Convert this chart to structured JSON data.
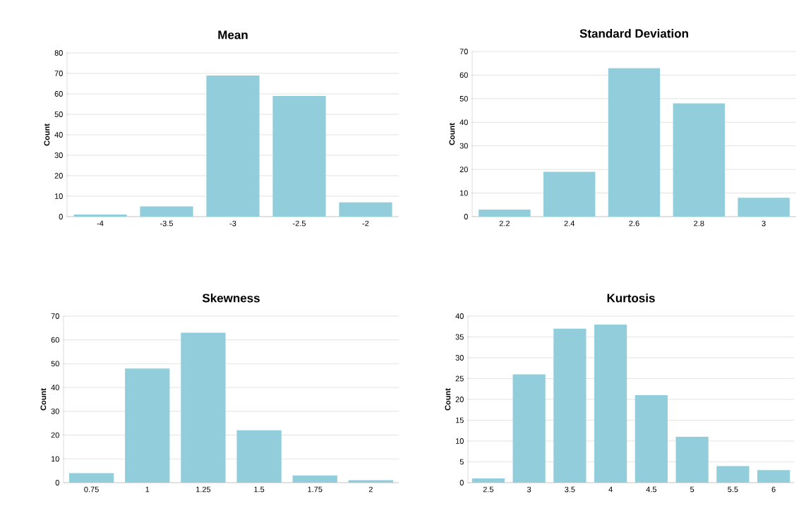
{
  "chart_data": [
    {
      "type": "bar",
      "title": "Mean",
      "ylabel": "Count",
      "categories": [
        "-4",
        "-3.5",
        "-3",
        "-2.5",
        "-2"
      ],
      "values": [
        1,
        5,
        69,
        59,
        7
      ],
      "color": "#92cddc",
      "ylim": [
        0,
        80
      ],
      "yticks": [
        0,
        10,
        20,
        30,
        40,
        50,
        60,
        70,
        80
      ],
      "grid": "y"
    },
    {
      "type": "bar",
      "title": "Standard Deviation",
      "ylabel": "Count",
      "categories": [
        "2.2",
        "2.4",
        "2.6",
        "2.8",
        "3"
      ],
      "values": [
        3,
        19,
        63,
        48,
        8
      ],
      "color": "#92cddc",
      "ylim": [
        0,
        70
      ],
      "yticks": [
        0,
        10,
        20,
        30,
        40,
        50,
        60,
        70
      ],
      "grid": "y"
    },
    {
      "type": "bar",
      "title": "Skewness",
      "ylabel": "Count",
      "categories": [
        "0.75",
        "1",
        "1.25",
        "1.5",
        "1.75",
        "2"
      ],
      "values": [
        4,
        48,
        63,
        22,
        3,
        1
      ],
      "color": "#92cddc",
      "ylim": [
        0,
        70
      ],
      "yticks": [
        0,
        10,
        20,
        30,
        40,
        50,
        60,
        70
      ],
      "grid": "y"
    },
    {
      "type": "bar",
      "title": "Kurtosis",
      "ylabel": "Count",
      "categories": [
        "2.5",
        "3",
        "3.5",
        "4",
        "4.5",
        "5",
        "5.5",
        "6"
      ],
      "values": [
        1,
        26,
        37,
        38,
        21,
        11,
        4,
        3
      ],
      "color": "#92cddc",
      "ylim": [
        0,
        40
      ],
      "yticks": [
        0,
        5,
        10,
        15,
        20,
        25,
        30,
        35,
        40
      ],
      "grid": "y"
    }
  ]
}
